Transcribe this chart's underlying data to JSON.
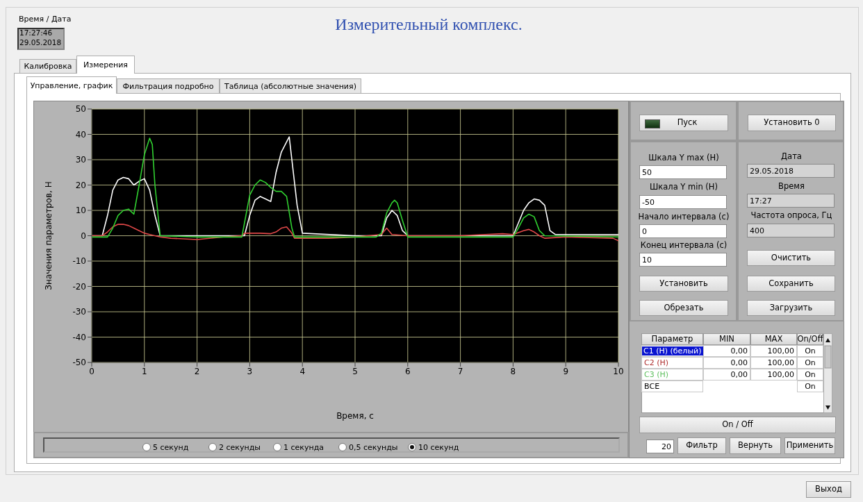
{
  "chart_data": [
    {
      "type": "line",
      "title": "Измерительный комплекс.",
      "xlabel": "Время, с",
      "ylabel": "Значения параметров, Н",
      "xlim": [
        0,
        10
      ],
      "xticks": [
        0,
        1,
        2,
        3,
        4,
        5,
        6,
        7,
        8,
        9,
        10
      ],
      "ylim": [
        -50,
        50
      ],
      "yticks": [
        -50,
        -40,
        -30,
        -20,
        -10,
        0,
        10,
        20,
        30,
        40,
        50
      ],
      "grid": true,
      "line_style": "solid",
      "marker": "none",
      "series": [
        {
          "color": "#ffffff",
          "x": [
            0,
            0.2,
            0.3,
            0.4,
            0.5,
            0.6,
            0.7,
            0.8,
            0.9,
            1.0,
            1.1,
            1.2,
            1.3,
            2.0,
            2.9,
            3.0,
            3.1,
            3.2,
            3.3,
            3.4,
            3.5,
            3.6,
            3.7,
            3.75,
            3.8,
            3.9,
            4.0,
            5.0,
            5.5,
            5.6,
            5.7,
            5.8,
            5.9,
            6.0,
            7.0,
            8.0,
            8.1,
            8.2,
            8.3,
            8.4,
            8.5,
            8.6,
            8.7,
            8.8,
            10
          ],
          "values": [
            0,
            0,
            8,
            18,
            22,
            23,
            22.5,
            20,
            21.5,
            22.5,
            18,
            8,
            0,
            0,
            0,
            8,
            14,
            15.5,
            14.5,
            13.5,
            25,
            33,
            37,
            39,
            30,
            12,
            1,
            0,
            0,
            7,
            10,
            8,
            2,
            0,
            0,
            0,
            5,
            10,
            13,
            14.5,
            14,
            12,
            2,
            0.5,
            0.5
          ]
        },
        {
          "color": "#e04848",
          "x": [
            0,
            0.2,
            0.3,
            0.4,
            0.5,
            0.6,
            0.7,
            0.8,
            0.9,
            1.0,
            1.1,
            1.2,
            1.3,
            1.5,
            2.0,
            2.5,
            2.85,
            2.9,
            3.2,
            3.4,
            3.5,
            3.6,
            3.7,
            3.8,
            3.85,
            4.5,
            5.0,
            5.5,
            5.6,
            5.7,
            6.0,
            7.0,
            7.8,
            8.0,
            8.2,
            8.3,
            8.4,
            8.5,
            8.6,
            9.0,
            9.9,
            10
          ],
          "values": [
            0,
            0,
            1.5,
            3.5,
            4.5,
            4.5,
            4,
            3,
            2,
            1,
            0.5,
            0,
            -0.5,
            -1,
            -1.5,
            -0.5,
            0,
            1,
            1,
            0.8,
            1.5,
            3,
            3.5,
            1,
            -1,
            -1,
            -0.5,
            0.5,
            3,
            0.5,
            0,
            0,
            0.8,
            0.5,
            2,
            2.5,
            1.5,
            0,
            -1,
            -0.5,
            -1,
            -2
          ]
        },
        {
          "color": "#30d030",
          "x": [
            0,
            0.3,
            0.4,
            0.5,
            0.6,
            0.7,
            0.8,
            0.9,
            1.0,
            1.1,
            1.15,
            1.2,
            1.3,
            2.0,
            2.85,
            2.9,
            3.0,
            3.1,
            3.2,
            3.3,
            3.4,
            3.5,
            3.6,
            3.7,
            3.8,
            3.85,
            5.0,
            5.4,
            5.5,
            5.6,
            5.7,
            5.75,
            5.8,
            5.9,
            6.0,
            7.0,
            8.0,
            8.1,
            8.2,
            8.3,
            8.4,
            8.5,
            8.6,
            10
          ],
          "values": [
            -0.5,
            -0.5,
            3,
            8,
            10,
            10.5,
            8.5,
            20,
            32,
            38.5,
            36,
            20,
            0,
            -0.5,
            -0.5,
            5,
            16,
            20,
            22,
            21,
            19,
            17.5,
            17.5,
            15.5,
            3,
            -0.5,
            -0.5,
            -0.5,
            1,
            9,
            13,
            14,
            13,
            6,
            -0.5,
            -0.5,
            -0.5,
            3,
            7,
            8.5,
            7.5,
            2,
            0,
            -0.5
          ]
        }
      ]
    },
    {
      "type": "other",
      "annotations": [
        "Время / Дата",
        "17:27:46",
        "29.05.2018",
        "Калибровка",
        "Измерения",
        "Управление, график",
        "Фильтрация подробно",
        "Таблица (абсолютные значения)",
        "Пуск",
        "Установить 0",
        "Шкала Y max (Н)",
        "50",
        "Шкала Y min (Н)",
        "-50",
        "Начало интервала (с)",
        "0",
        "Конец интервала (с)",
        "10",
        "Установить",
        "Обрезать",
        "Дата",
        "29.05.2018",
        "Время",
        "17:27",
        "Частота опроса, Гц",
        "400",
        "Очистить",
        "Сохранить",
        "Загрузить",
        "Параметр",
        "MIN",
        "MAX",
        "On/Off",
        "C1 (Н) (белый)",
        "0,00",
        "100,00",
        "On",
        "C2 (Н)",
        "0,00",
        "100,00",
        "On",
        "C3 (Н)",
        "0,00",
        "100,00",
        "On",
        "ВСЕ",
        "On",
        "On / Off",
        "20",
        "Фильтр",
        "Вернуть",
        "Применить",
        "5 секунд",
        "2 секунды",
        "1 секунда",
        "0,5 секунды",
        "10 секунд",
        "Выход"
      ]
    }
  ]
}
